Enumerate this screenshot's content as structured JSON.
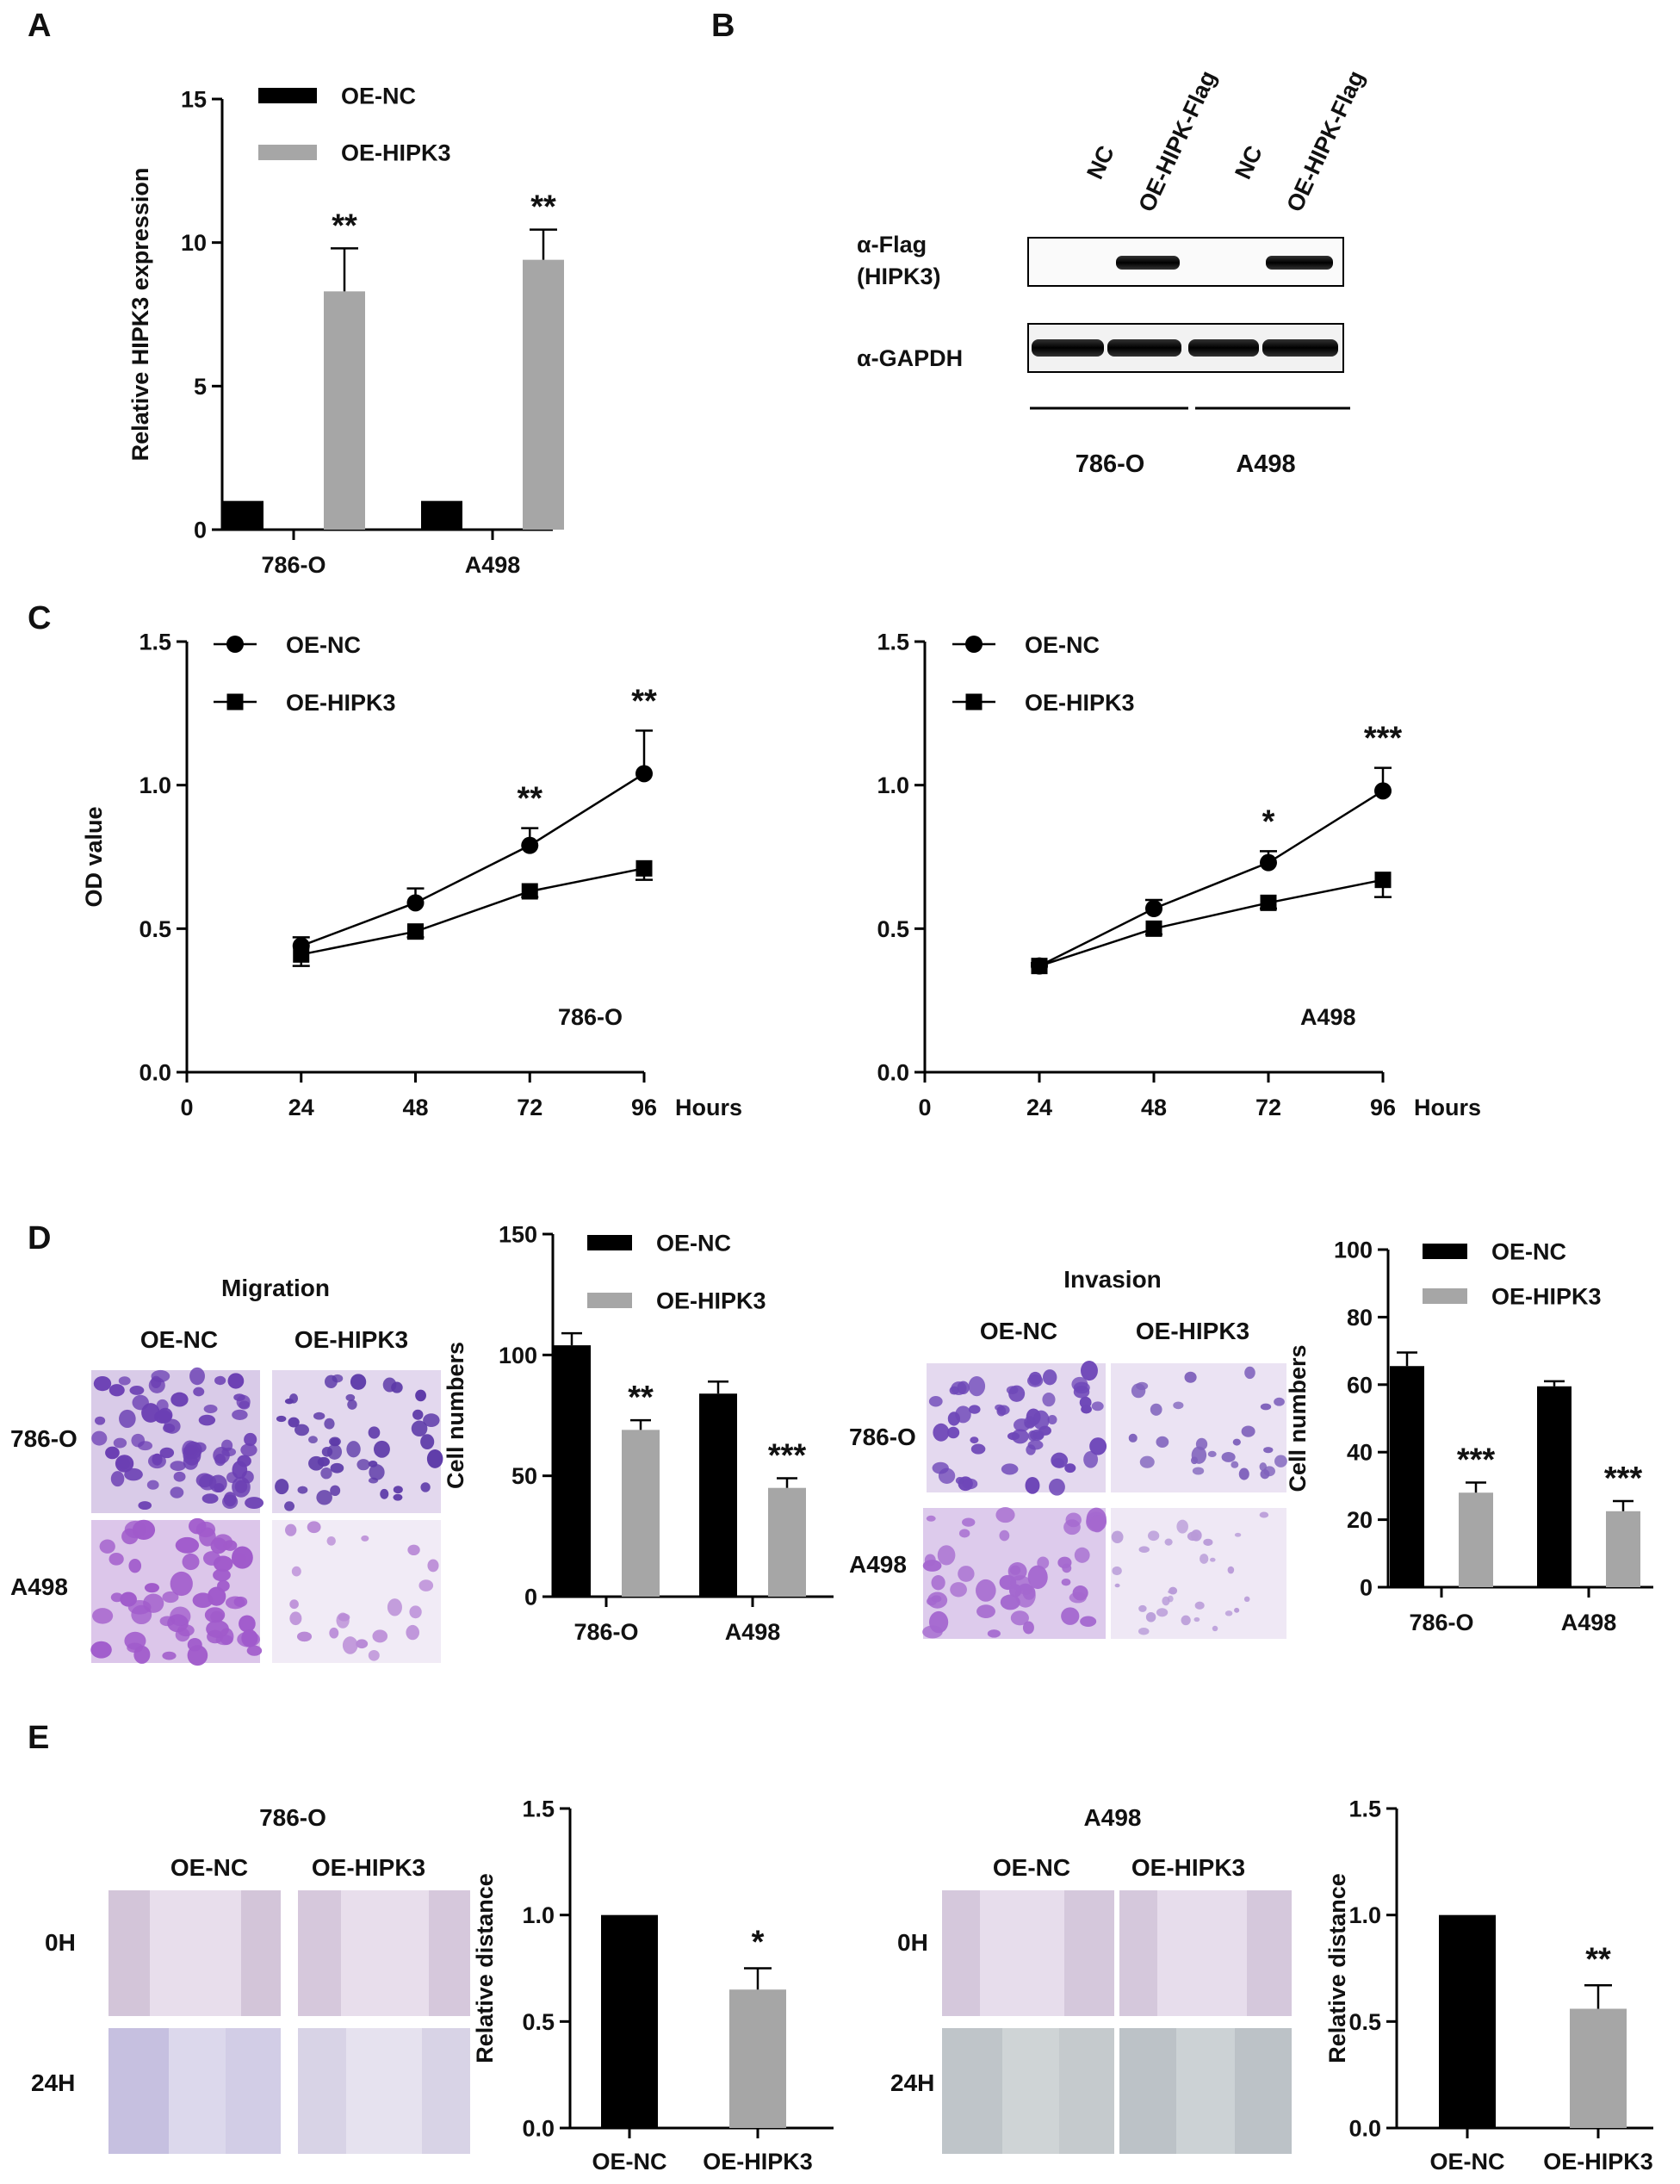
{
  "colors": {
    "black": "#000000",
    "gray": "#a6a6a6",
    "ink": "#111111"
  },
  "panel_labels": [
    "A",
    "B",
    "C",
    "D",
    "E"
  ],
  "chart_data": [
    {
      "id": "A",
      "type": "bar",
      "categories": [
        "786-O",
        "A498"
      ],
      "series": [
        {
          "name": "OE-NC",
          "values": [
            1,
            1
          ],
          "errors": [
            0,
            0
          ]
        },
        {
          "name": "OE-HIPK3",
          "values": [
            8.3,
            9.4
          ],
          "errors": [
            1.5,
            1.05
          ]
        }
      ],
      "significance": {
        "OE-HIPK3": [
          "**",
          "**"
        ]
      },
      "ylabel": "Relative HIPK3 expression",
      "ylim": [
        0,
        15
      ],
      "yticks": [
        0,
        5,
        10,
        15
      ],
      "legend": "top-right"
    },
    {
      "id": "C1",
      "type": "line",
      "x": [
        24,
        48,
        72,
        96
      ],
      "series": [
        {
          "name": "OE-NC",
          "values": [
            0.44,
            0.59,
            0.79,
            1.04
          ],
          "errors": [
            0.03,
            0.05,
            0.06,
            0.15
          ]
        },
        {
          "name": "OE-HIPK3",
          "values": [
            0.41,
            0.49,
            0.63,
            0.71
          ],
          "errors": [
            0.04,
            0.02,
            0.02,
            0.04
          ]
        }
      ],
      "significance": [
        "",
        "",
        "**",
        "**"
      ],
      "ylabel": "OD value",
      "xlabel": "Hours",
      "annotation": "786-O",
      "xlim": [
        0,
        96
      ],
      "ylim": [
        0.0,
        1.5
      ],
      "xticks": [
        0,
        24,
        48,
        72,
        96
      ],
      "yticks": [
        "0.0",
        "0.5",
        "1.0",
        "1.5"
      ],
      "legend": "top-left"
    },
    {
      "id": "C2",
      "type": "line",
      "x": [
        24,
        48,
        72,
        96
      ],
      "series": [
        {
          "name": "OE-NC",
          "values": [
            0.37,
            0.57,
            0.73,
            0.98
          ],
          "errors": [
            0.01,
            0.03,
            0.04,
            0.08
          ]
        },
        {
          "name": "OE-HIPK3",
          "values": [
            0.37,
            0.5,
            0.59,
            0.67
          ],
          "errors": [
            0.01,
            0.02,
            0.02,
            0.06
          ]
        }
      ],
      "significance": [
        "",
        "",
        "*",
        "***"
      ],
      "ylabel": "",
      "xlabel": "Hours",
      "annotation": "A498",
      "xlim": [
        0,
        96
      ],
      "ylim": [
        0.0,
        1.5
      ],
      "xticks": [
        0,
        24,
        48,
        72,
        96
      ],
      "yticks": [
        "0.0",
        "0.5",
        "1.0",
        "1.5"
      ],
      "legend": "top-left"
    },
    {
      "id": "D1",
      "type": "bar",
      "categories": [
        "786-O",
        "A498"
      ],
      "series": [
        {
          "name": "OE-NC",
          "values": [
            104,
            84
          ],
          "errors": [
            5,
            5
          ]
        },
        {
          "name": "OE-HIPK3",
          "values": [
            69,
            45
          ],
          "errors": [
            4,
            4
          ]
        }
      ],
      "significance": {
        "OE-HIPK3": [
          "**",
          "***"
        ]
      },
      "ylabel": "Cell numbers",
      "ylim": [
        0,
        150
      ],
      "yticks": [
        0,
        50,
        100,
        150
      ],
      "legend": "top-right"
    },
    {
      "id": "D2",
      "type": "bar",
      "categories": [
        "786-O",
        "A498"
      ],
      "series": [
        {
          "name": "OE-NC",
          "values": [
            65.5,
            59.5
          ],
          "errors": [
            4,
            1.5
          ]
        },
        {
          "name": "OE-HIPK3",
          "values": [
            28,
            22.5
          ],
          "errors": [
            3,
            3
          ]
        }
      ],
      "significance": {
        "OE-HIPK3": [
          "***",
          "***"
        ]
      },
      "ylabel": "Cell numbers",
      "ylim": [
        0,
        100
      ],
      "yticks": [
        0,
        20,
        40,
        60,
        80,
        100
      ],
      "legend": "top-right"
    },
    {
      "id": "E1",
      "type": "bar",
      "categories": [
        "OE-NC",
        "OE-HIPK3"
      ],
      "values": [
        1.0,
        0.65
      ],
      "errors": [
        0,
        0.1
      ],
      "significance": [
        "",
        "*"
      ],
      "ylabel": "Relative distance",
      "ylim": [
        0.0,
        1.5
      ],
      "yticks": [
        "0.0",
        "0.5",
        "1.0",
        "1.5"
      ]
    },
    {
      "id": "E2",
      "type": "bar",
      "categories": [
        "OE-NC",
        "OE-HIPK3"
      ],
      "values": [
        1.0,
        0.56
      ],
      "errors": [
        0,
        0.11
      ],
      "significance": [
        "",
        "**"
      ],
      "ylabel": "Relative distance",
      "ylim": [
        0.0,
        1.5
      ],
      "yticks": [
        "0.0",
        "0.5",
        "1.0",
        "1.5"
      ]
    }
  ],
  "western_blot": {
    "lanes": [
      "NC",
      "OE-HIPK-Flag",
      "NC",
      "OE-HIPK-Flag"
    ],
    "rows": [
      "α-Flag",
      "(HIPK3)",
      "α-GAPDH"
    ],
    "groups": [
      "786-O",
      "A498"
    ]
  },
  "micrographs": {
    "migration": {
      "title": "Migration",
      "columns": [
        "OE-NC",
        "OE-HIPK3"
      ],
      "rows": [
        "786-O",
        "A498"
      ]
    },
    "invasion": {
      "title": "Invasion",
      "columns": [
        "OE-NC",
        "OE-HIPK3"
      ],
      "rows": [
        "786-O",
        "A498"
      ]
    },
    "wound_786": {
      "title": "786-O",
      "columns": [
        "OE-NC",
        "OE-HIPK3"
      ],
      "rows": [
        "0H",
        "24H"
      ]
    },
    "wound_a498": {
      "title": "A498",
      "columns": [
        "OE-NC",
        "OE-HIPK3"
      ],
      "rows": [
        "0H",
        "24H"
      ]
    }
  }
}
